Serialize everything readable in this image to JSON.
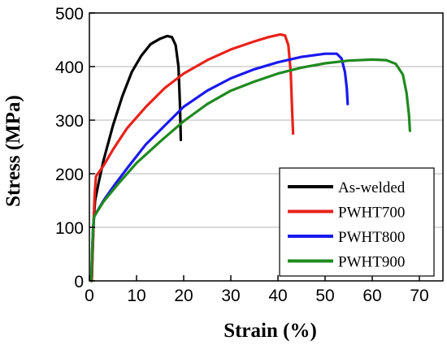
{
  "chart_data": {
    "type": "line",
    "title": "",
    "xlabel": "Strain (%)",
    "ylabel": "Stress (MPa)",
    "xlim": [
      0,
      75
    ],
    "ylim": [
      0,
      500
    ],
    "xticks": [
      "0",
      "10",
      "20",
      "30",
      "40",
      "50",
      "60",
      "70"
    ],
    "yticks": [
      "0",
      "100",
      "200",
      "300",
      "400",
      "500"
    ],
    "grid": "horizontal",
    "legend": "bottom-right",
    "series": [
      {
        "name": "As-welded",
        "color": "#000000",
        "points": [
          [
            0.5,
            0
          ],
          [
            0.7,
            60
          ],
          [
            0.9,
            110
          ],
          [
            1.2,
            150
          ],
          [
            2,
            185
          ],
          [
            3,
            225
          ],
          [
            5,
            290
          ],
          [
            7,
            345
          ],
          [
            9,
            390
          ],
          [
            11,
            420
          ],
          [
            13,
            442
          ],
          [
            15,
            452
          ],
          [
            16.5,
            457
          ],
          [
            17.5,
            455
          ],
          [
            18.3,
            440
          ],
          [
            18.9,
            400
          ],
          [
            19.2,
            330
          ],
          [
            19.4,
            263
          ]
        ]
      },
      {
        "name": "PWHT700",
        "color": "#e8221a",
        "points": [
          [
            0.5,
            0
          ],
          [
            0.7,
            60
          ],
          [
            0.9,
            110
          ],
          [
            1.1,
            160
          ],
          [
            1.4,
            195
          ],
          [
            3,
            215
          ],
          [
            5,
            245
          ],
          [
            8,
            285
          ],
          [
            12,
            325
          ],
          [
            16,
            360
          ],
          [
            20,
            387
          ],
          [
            25,
            412
          ],
          [
            30,
            432
          ],
          [
            35,
            447
          ],
          [
            38,
            455
          ],
          [
            40.5,
            460
          ],
          [
            41.5,
            458
          ],
          [
            42.2,
            440
          ],
          [
            42.7,
            390
          ],
          [
            43,
            320
          ],
          [
            43.2,
            275
          ]
        ]
      },
      {
        "name": "PWHT800",
        "color": "#1a1aee",
        "points": [
          [
            0.4,
            0
          ],
          [
            0.6,
            60
          ],
          [
            0.8,
            100
          ],
          [
            1,
            120
          ],
          [
            3,
            150
          ],
          [
            5,
            175
          ],
          [
            8,
            210
          ],
          [
            12,
            255
          ],
          [
            16,
            290
          ],
          [
            20,
            325
          ],
          [
            25,
            355
          ],
          [
            30,
            378
          ],
          [
            35,
            395
          ],
          [
            40,
            408
          ],
          [
            45,
            418
          ],
          [
            50,
            424
          ],
          [
            52.5,
            424
          ],
          [
            53.5,
            415
          ],
          [
            54.2,
            390
          ],
          [
            54.6,
            360
          ],
          [
            54.8,
            330
          ]
        ]
      },
      {
        "name": "PWHT900",
        "color": "#1f8a1f",
        "points": [
          [
            0.4,
            0
          ],
          [
            0.6,
            60
          ],
          [
            0.8,
            100
          ],
          [
            1,
            120
          ],
          [
            3,
            148
          ],
          [
            6,
            180
          ],
          [
            10,
            220
          ],
          [
            15,
            260
          ],
          [
            20,
            298
          ],
          [
            25,
            330
          ],
          [
            30,
            355
          ],
          [
            35,
            372
          ],
          [
            40,
            387
          ],
          [
            45,
            398
          ],
          [
            50,
            406
          ],
          [
            55,
            411
          ],
          [
            60,
            413
          ],
          [
            63,
            412
          ],
          [
            65,
            405
          ],
          [
            66.5,
            385
          ],
          [
            67.3,
            350
          ],
          [
            67.8,
            310
          ],
          [
            68,
            280
          ]
        ]
      }
    ]
  }
}
